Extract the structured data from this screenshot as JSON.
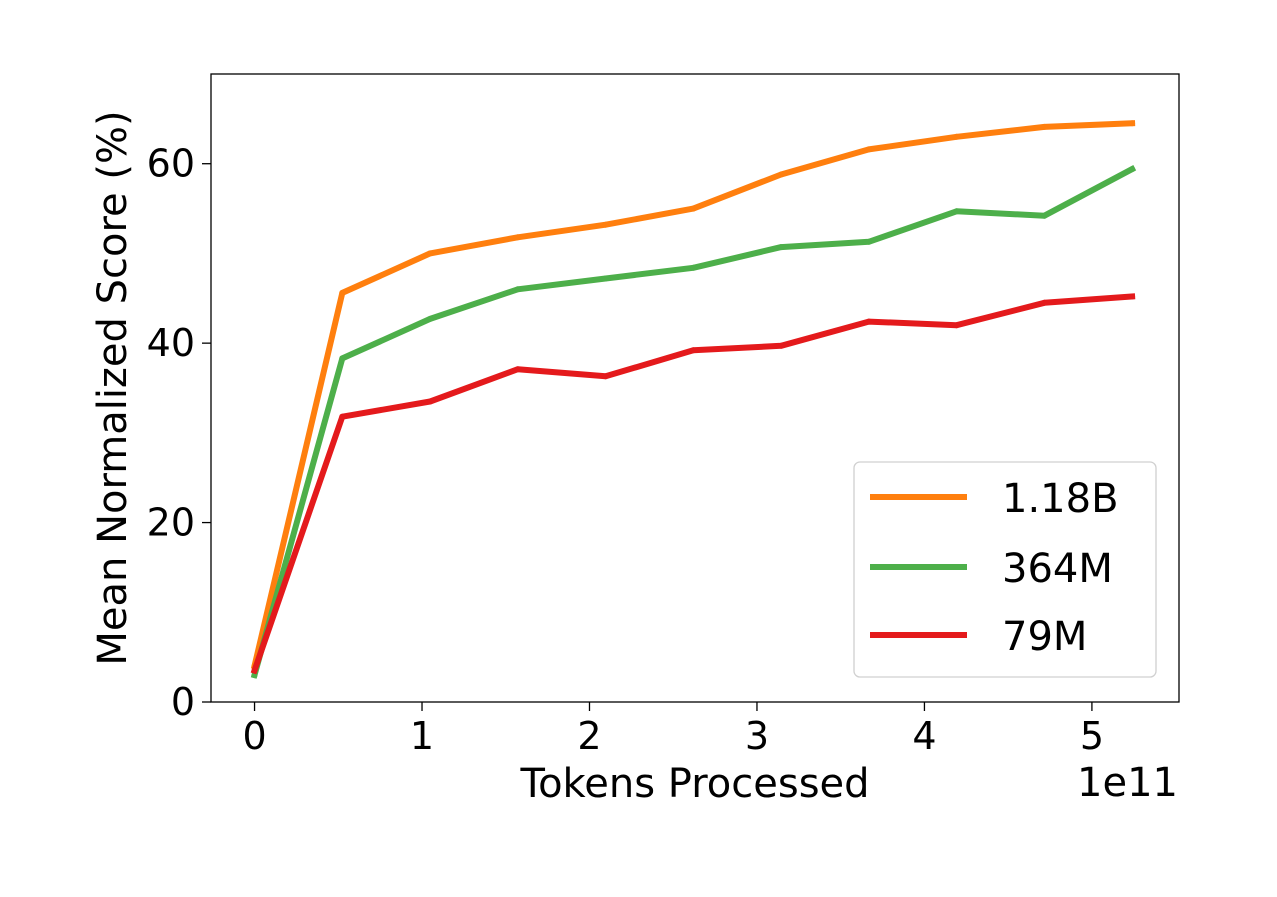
{
  "chart_data": {
    "type": "line",
    "title": "",
    "xlabel": "Tokens Processed",
    "ylabel": "Mean Normalized Score (%)",
    "x_offset_label": "1e11",
    "x_unit_multiplier": 100000000000.0,
    "xlim": [
      -0.26,
      5.52
    ],
    "ylim": [
      0,
      70
    ],
    "xticks": [
      0,
      1,
      2,
      3,
      4,
      5
    ],
    "yticks": [
      0,
      20,
      40,
      60
    ],
    "grid": false,
    "legend_position": "lower-right",
    "x": [
      0,
      0.524,
      1.048,
      1.572,
      2.096,
      2.62,
      3.144,
      3.668,
      4.192,
      4.716,
      5.24
    ],
    "series": [
      {
        "name": "1.18B",
        "color": "#ff7f0e",
        "values": [
          4.0,
          45.6,
          50.0,
          51.8,
          53.2,
          55.0,
          58.8,
          61.6,
          63.0,
          64.1,
          64.5
        ]
      },
      {
        "name": "364M",
        "color": "#4daf4a",
        "values": [
          3.0,
          38.3,
          42.7,
          46.0,
          47.2,
          48.4,
          50.7,
          51.3,
          54.7,
          54.2,
          59.4
        ]
      },
      {
        "name": "79M",
        "color": "#e41a1c",
        "values": [
          3.5,
          31.8,
          33.5,
          37.1,
          36.3,
          39.2,
          39.7,
          42.4,
          42.0,
          44.5,
          45.2
        ]
      }
    ]
  }
}
